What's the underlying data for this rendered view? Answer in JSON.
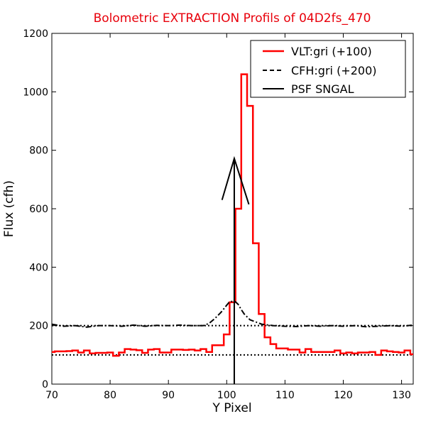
{
  "chart_data": {
    "type": "line",
    "title": "Bolometric EXTRACTION Profils of 04D2fs_470",
    "title_color": "#e8000b",
    "xlabel": "Y Pixel",
    "ylabel": "Flux (cfh)",
    "xlim": [
      70,
      132
    ],
    "ylim": [
      0,
      1200
    ],
    "xticks": [
      70,
      80,
      90,
      100,
      110,
      120,
      130
    ],
    "yticks": [
      0,
      200,
      400,
      600,
      800,
      1000,
      1200
    ],
    "grid": false,
    "legend_position": "top-right",
    "reference_lines": [
      {
        "y": 100,
        "style": "dotted",
        "color": "#000000"
      },
      {
        "y": 200,
        "style": "dotted",
        "color": "#000000"
      }
    ],
    "series": [
      {
        "name": "VLT:gri (+100)",
        "color": "#ff0000",
        "style": "steps",
        "x": [
          70,
          71,
          72,
          73,
          74,
          75,
          76,
          77,
          78,
          79,
          80,
          81,
          82,
          83,
          84,
          85,
          86,
          87,
          88,
          89,
          90,
          91,
          92,
          93,
          94,
          95,
          96,
          97,
          98,
          99,
          100,
          101,
          102,
          103,
          104,
          105,
          106,
          107,
          108,
          109,
          110,
          111,
          112,
          113,
          114,
          115,
          116,
          117,
          118,
          119,
          120,
          121,
          122,
          123,
          124,
          125,
          126,
          127,
          128,
          129,
          130,
          131,
          132
        ],
        "y": [
          110,
          112,
          112,
          113,
          115,
          108,
          115,
          105,
          107,
          107,
          108,
          97,
          108,
          120,
          118,
          116,
          107,
          118,
          120,
          108,
          108,
          118,
          118,
          117,
          118,
          115,
          120,
          110,
          133,
          133,
          170,
          280,
          600,
          1060,
          952,
          482,
          240,
          160,
          137,
          122,
          122,
          118,
          118,
          108,
          120,
          110,
          110,
          110,
          110,
          115,
          105,
          108,
          105,
          108,
          108,
          110,
          100,
          115,
          112,
          110,
          108,
          115,
          102
        ]
      },
      {
        "name": "CFH:gri (+200)",
        "color": "#000000",
        "style": "dashdot",
        "x": [
          70,
          72,
          74,
          76,
          78,
          80,
          82,
          84,
          86,
          88,
          90,
          92,
          94,
          96,
          97,
          98,
          99,
          100,
          100.5,
          101,
          101.5,
          102,
          102.5,
          103,
          104,
          106,
          108,
          110,
          112,
          114,
          116,
          118,
          120,
          122,
          124,
          126,
          128,
          130,
          132
        ],
        "y": [
          205,
          198,
          200,
          195,
          200,
          200,
          198,
          202,
          198,
          201,
          200,
          202,
          200,
          200,
          208,
          225,
          245,
          270,
          282,
          283,
          282,
          272,
          255,
          240,
          220,
          205,
          200,
          198,
          197,
          200,
          198,
          200,
          198,
          200,
          196,
          198,
          200,
          198,
          202
        ]
      },
      {
        "name": "PSF SNGAL",
        "color": "#000000",
        "style": "solid",
        "segments": [
          {
            "x": [
              99.2,
              101.3,
              103.8
            ],
            "y": [
              630,
              772,
              615
            ]
          },
          {
            "x": [
              101.3,
              101.3
            ],
            "y": [
              0,
              772
            ]
          }
        ]
      }
    ]
  }
}
